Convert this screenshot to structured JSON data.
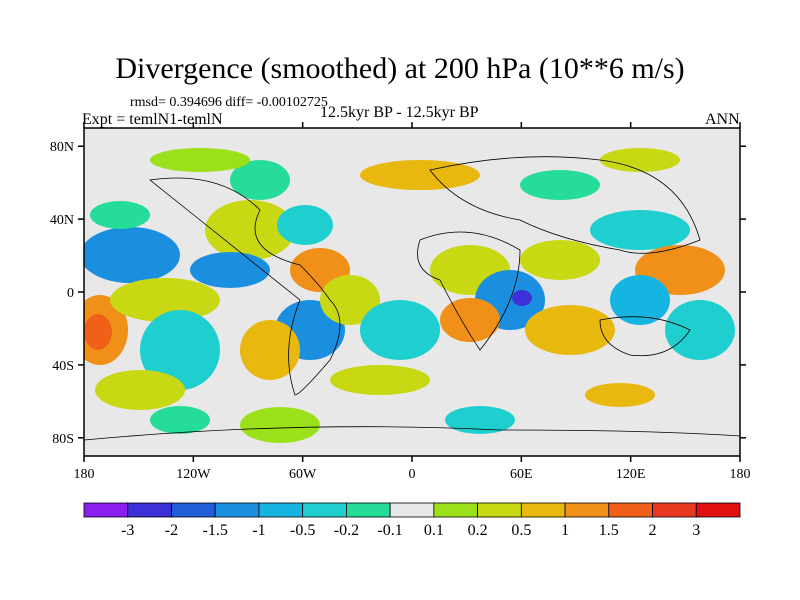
{
  "title": "Divergence (smoothed) at 200 hPa (10**6 m/s)",
  "stats": "rmsd= 0.394696 diff= -0.00102725",
  "experiment": "Expt = temlN1-temlN",
  "period": "12.5kyr BP - 12.5kyr BP",
  "season": "ANN",
  "lat_ticks": [
    "80N",
    "40N",
    "0",
    "40S",
    "80S"
  ],
  "lon_ticks": [
    "180",
    "120W",
    "60W",
    "0",
    "60E",
    "120E",
    "180"
  ],
  "colorbar": {
    "labels": [
      "-3",
      "-2",
      "-1.5",
      "-1",
      "-0.5",
      "-0.2",
      "-0.1",
      "0.1",
      "0.2",
      "0.5",
      "1",
      "1.5",
      "2",
      "3"
    ],
    "colors": [
      "#8a1ff0",
      "#3d30d6",
      "#1f5ed8",
      "#1a8fe0",
      "#16b4e0",
      "#1fcfd0",
      "#25dc98",
      "#e8e8e8",
      "#9be01a",
      "#c8d812",
      "#e8b80e",
      "#f09018",
      "#f06018",
      "#e83820",
      "#e01010"
    ]
  }
}
